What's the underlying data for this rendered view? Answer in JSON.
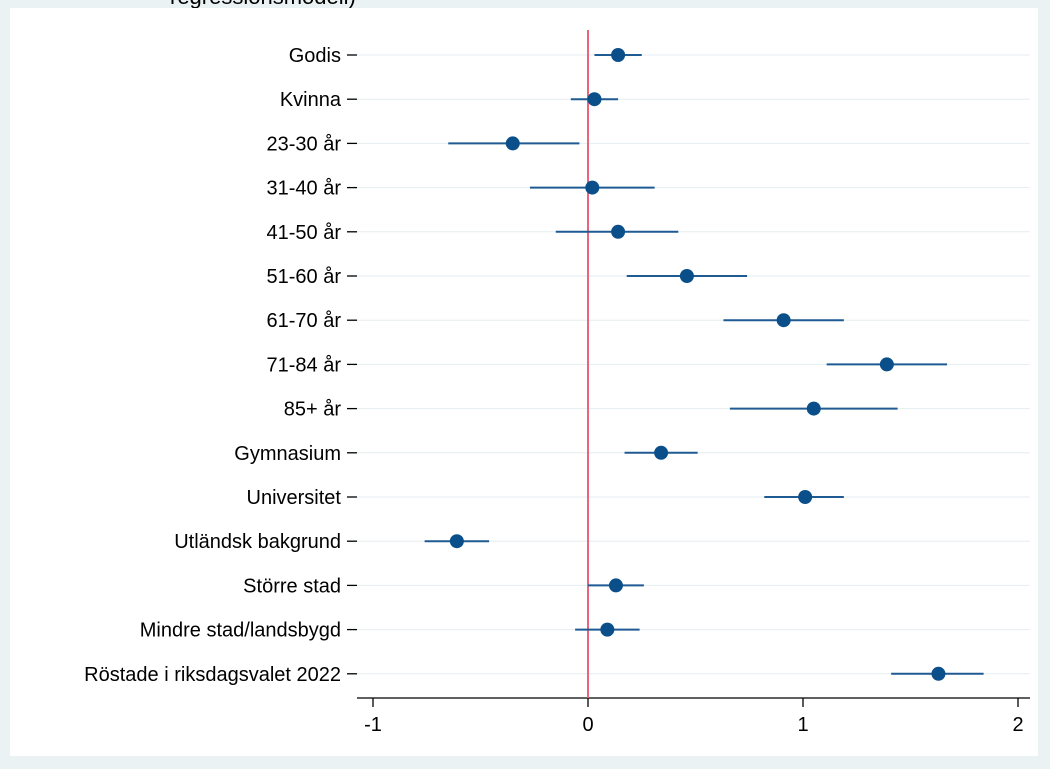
{
  "header_fragment": "regressionsmodell)",
  "chart_data": {
    "type": "coefficient-plot",
    "x_ticks": [
      -1,
      0,
      1,
      2
    ],
    "xlim": [
      -1.1,
      2.05
    ],
    "reference_line_x": 0,
    "grid": true,
    "colors": {
      "outer_background": "#eaf2f3",
      "plot_background": "#ffffff",
      "marker": "#0b4f8a",
      "ci_line": "#1f5a92",
      "reference_line": "#e8657a"
    },
    "variables": [
      {
        "label": "Godis",
        "estimate": 0.14,
        "ci": [
          0.03,
          0.25
        ]
      },
      {
        "label": "Kvinna",
        "estimate": 0.03,
        "ci": [
          -0.08,
          0.14
        ]
      },
      {
        "label": "23-30 år",
        "estimate": -0.35,
        "ci": [
          -0.65,
          -0.04
        ]
      },
      {
        "label": "31-40 år",
        "estimate": 0.02,
        "ci": [
          -0.27,
          0.31
        ]
      },
      {
        "label": "41-50 år",
        "estimate": 0.14,
        "ci": [
          -0.15,
          0.42
        ]
      },
      {
        "label": "51-60 år",
        "estimate": 0.46,
        "ci": [
          0.18,
          0.74
        ]
      },
      {
        "label": "61-70 år",
        "estimate": 0.91,
        "ci": [
          0.63,
          1.19
        ]
      },
      {
        "label": "71-84 år",
        "estimate": 1.39,
        "ci": [
          1.11,
          1.67
        ]
      },
      {
        "label": "85+ år",
        "estimate": 1.05,
        "ci": [
          0.66,
          1.44
        ]
      },
      {
        "label": "Gymnasium",
        "estimate": 0.34,
        "ci": [
          0.17,
          0.51
        ]
      },
      {
        "label": "Universitet",
        "estimate": 1.01,
        "ci": [
          0.82,
          1.19
        ]
      },
      {
        "label": "Utländsk bakgrund",
        "estimate": -0.61,
        "ci": [
          -0.76,
          -0.46
        ]
      },
      {
        "label": "Större stad",
        "estimate": 0.13,
        "ci": [
          0.0,
          0.26
        ]
      },
      {
        "label": "Mindre stad/landsbygd",
        "estimate": 0.09,
        "ci": [
          -0.06,
          0.24
        ]
      },
      {
        "label": "Röstade i riksdagsvalet 2022",
        "estimate": 1.63,
        "ci": [
          1.41,
          1.84
        ]
      }
    ]
  }
}
